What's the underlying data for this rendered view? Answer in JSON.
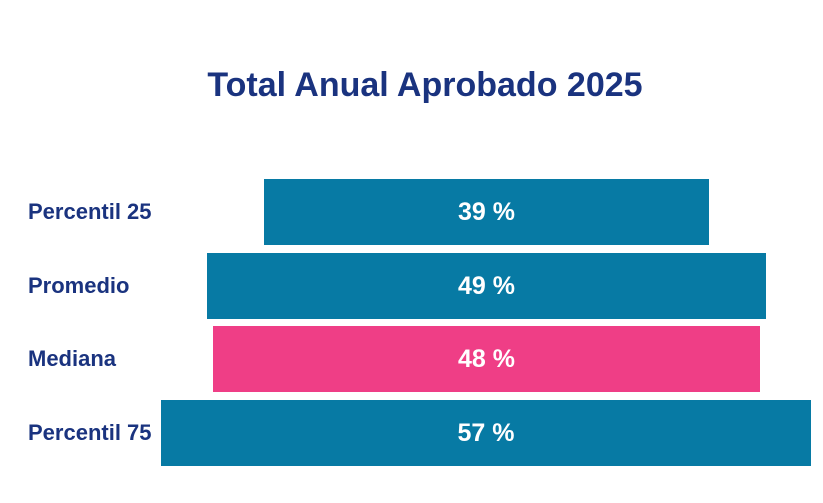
{
  "title": "Total Anual Aprobado 2025",
  "colors": {
    "background": "#ffffff",
    "heading_text": "#1a337f",
    "category_text": "#1a337f",
    "value_text": "#ffffff",
    "teal_bar": "#077aa4",
    "pink_bar": "#ef3e86"
  },
  "chart_data": {
    "type": "bar",
    "orientation": "horizontal-centered",
    "title": "Total Anual Aprobado 2025",
    "categories": [
      "Percentil 25",
      "Promedio",
      "Mediana",
      "Percentil 75"
    ],
    "values": [
      39,
      49,
      48,
      57
    ],
    "value_labels": [
      "39 %",
      "49 %",
      "48 %",
      "57 %"
    ],
    "bar_colors": [
      "#077aa4",
      "#077aa4",
      "#ef3e86",
      "#077aa4"
    ],
    "unit": "%",
    "xlim": [
      0,
      60
    ],
    "axes_visible": false,
    "grid": false,
    "legend_position": "none",
    "data_labels": "inside-center"
  }
}
